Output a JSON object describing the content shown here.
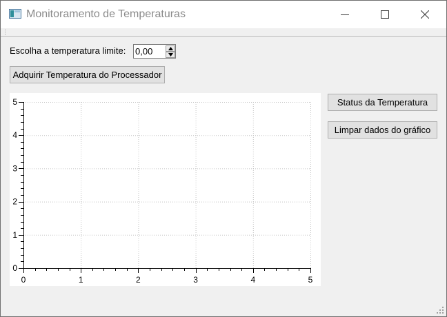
{
  "window": {
    "title": "Monitoramento de Temperaturas"
  },
  "controls": {
    "limit_label": "Escolha a temperatura limite:",
    "limit_value": "0,00",
    "acquire_button": "Adquirir Temperatura do Processador",
    "status_button": "Status da Temperatura",
    "clear_button": "Limpar dados do gráfico"
  },
  "icons": {
    "app": "window-app-icon",
    "minimize": "minimize-icon",
    "maximize": "maximize-icon",
    "close": "close-icon",
    "spin_up": "spin-up-arrow-icon",
    "spin_down": "spin-down-arrow-icon"
  },
  "chart_data": {
    "type": "line",
    "title": "",
    "xlabel": "",
    "ylabel": "",
    "series": [],
    "xlim": [
      0,
      5
    ],
    "ylim": [
      0,
      5
    ],
    "x_ticks": [
      "0",
      "1",
      "2",
      "3",
      "4",
      "5"
    ],
    "y_ticks": [
      "0",
      "1",
      "2",
      "3",
      "4",
      "5"
    ],
    "grid": true,
    "grid_style": "dotted"
  }
}
